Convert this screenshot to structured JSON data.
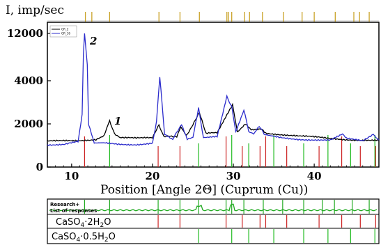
{
  "chart_data": {
    "type": "line",
    "ylabel": "I, imp/sec",
    "xlabel": "Position [Angle 2Θ] (Cuprum (Cu))",
    "x_range": [
      7,
      48
    ],
    "y_ticks": [
      0,
      2000,
      4000,
      12000
    ],
    "y_tick_labels": [
      "0",
      "2000",
      "4000",
      "12000"
    ],
    "x_ticks": [
      10,
      20,
      30,
      40
    ],
    "x_tick_labels": [
      "10",
      "20",
      "30",
      "40"
    ],
    "legend": [
      "GR_2",
      "GR_16"
    ],
    "series": [
      {
        "name": "GR_2",
        "label": "1",
        "color": "#000000",
        "points": [
          [
            7,
            1180
          ],
          [
            9,
            1200
          ],
          [
            11,
            1230
          ],
          [
            13,
            1300
          ],
          [
            14,
            1480
          ],
          [
            14.7,
            2200
          ],
          [
            15.3,
            1500
          ],
          [
            16,
            1360
          ],
          [
            18,
            1320
          ],
          [
            20,
            1340
          ],
          [
            20.8,
            2000
          ],
          [
            21.4,
            1380
          ],
          [
            23,
            1440
          ],
          [
            23.5,
            1900
          ],
          [
            24.2,
            1480
          ],
          [
            25.8,
            2500
          ],
          [
            26.6,
            1550
          ],
          [
            28,
            1560
          ],
          [
            29.2,
            2400
          ],
          [
            29.9,
            2900
          ],
          [
            30.5,
            1600
          ],
          [
            31.5,
            2000
          ],
          [
            32.2,
            1700
          ],
          [
            33.5,
            1800
          ],
          [
            34,
            1600
          ],
          [
            36,
            1500
          ],
          [
            38,
            1420
          ],
          [
            40,
            1380
          ],
          [
            42,
            1330
          ],
          [
            44,
            1290
          ],
          [
            46,
            1260
          ],
          [
            48,
            1230
          ]
        ]
      },
      {
        "name": "GR_16",
        "label": "2",
        "color": "#2b2bcc",
        "points": [
          [
            7,
            1050
          ],
          [
            9,
            1070
          ],
          [
            10.8,
            1150
          ],
          [
            11.3,
            2400
          ],
          [
            11.6,
            12000
          ],
          [
            12.1,
            2000
          ],
          [
            12.8,
            1100
          ],
          [
            14,
            1100
          ],
          [
            16,
            1060
          ],
          [
            18,
            1060
          ],
          [
            20,
            1120
          ],
          [
            20.5,
            2100
          ],
          [
            20.9,
            4300
          ],
          [
            21.5,
            1500
          ],
          [
            22.5,
            1250
          ],
          [
            23.6,
            2000
          ],
          [
            24.3,
            1300
          ],
          [
            25,
            1350
          ],
          [
            25.7,
            2700
          ],
          [
            26.3,
            1400
          ],
          [
            28,
            1450
          ],
          [
            29.2,
            3300
          ],
          [
            29.8,
            2800
          ],
          [
            30.3,
            1600
          ],
          [
            31.3,
            2600
          ],
          [
            31.9,
            1700
          ],
          [
            32.5,
            1500
          ],
          [
            33.2,
            1900
          ],
          [
            33.8,
            1500
          ],
          [
            35,
            1400
          ],
          [
            36,
            1350
          ],
          [
            38,
            1300
          ],
          [
            40,
            1280
          ],
          [
            42,
            1250
          ],
          [
            43.5,
            1500
          ],
          [
            44,
            1300
          ],
          [
            46,
            1200
          ],
          [
            47.3,
            1550
          ],
          [
            48,
            1250
          ]
        ]
      }
    ],
    "markers_top": [
      11.7,
      12.5,
      14.7,
      20.8,
      23.4,
      25.8,
      29.2,
      29.4,
      29.8,
      31.4,
      32.0,
      33.6,
      36.2,
      38.5,
      40.0,
      42.6,
      44.9,
      45.6,
      46.8
    ],
    "reference_rows": [
      {
        "label": "Research+ List of responses",
        "color": "#22aa22",
        "peaks": [
          11.6,
          14.7,
          20.7,
          23.4,
          25.7,
          29.1,
          29.8,
          31.3,
          33.7,
          36.1,
          38.7,
          41.0,
          42.5,
          44.7,
          46.8
        ]
      },
      {
        "label_html": "CaSO4·2H2O",
        "color": "#cc2222",
        "peaks": [
          11.6,
          20.7,
          23.4,
          29.1,
          31.1,
          33.3,
          34.0,
          36.6,
          40.6,
          43.4,
          45.7,
          47.6
        ]
      },
      {
        "label_html": "CaSO4·0.5H2O",
        "color": "#22bb22",
        "peaks": [
          14.7,
          25.7,
          29.8,
          31.9,
          35.0,
          38.7,
          41.7,
          44.5,
          47.5
        ]
      }
    ],
    "annotations": [
      "1",
      "2"
    ]
  }
}
